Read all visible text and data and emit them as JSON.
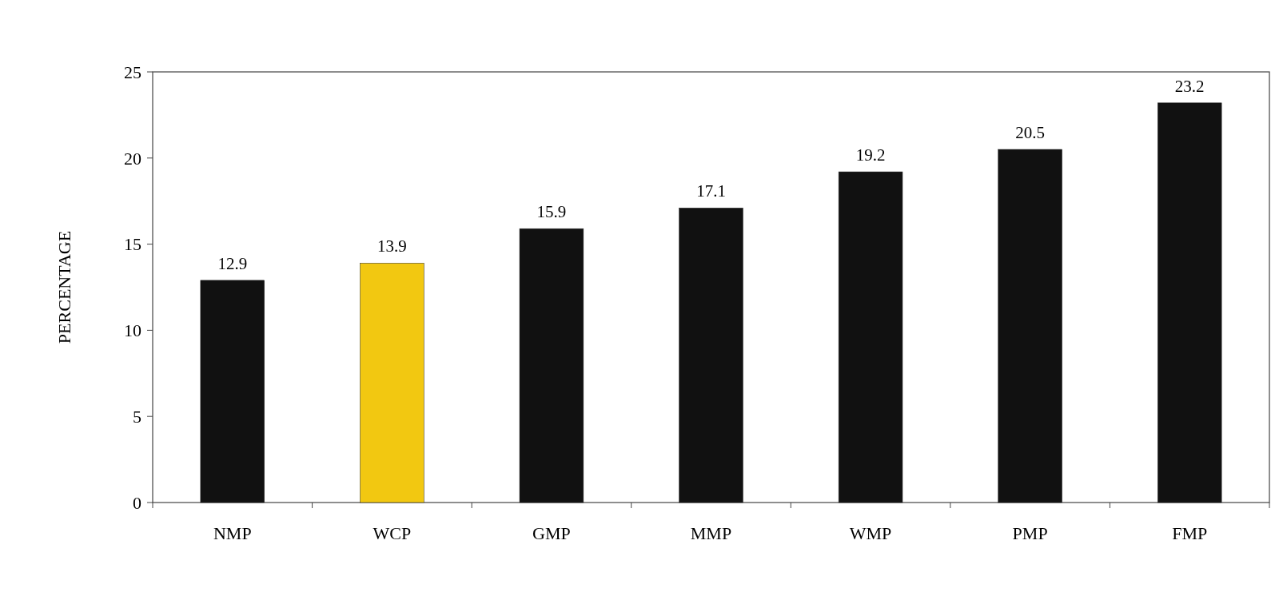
{
  "chart_data": {
    "type": "bar",
    "ylabel": "PERCENTAGE",
    "categories": [
      "NMP",
      "WCP",
      "GMP",
      "MMP",
      "WMP",
      "PMP",
      "FMP"
    ],
    "values": [
      12.9,
      13.9,
      15.9,
      17.1,
      19.2,
      20.5,
      23.2
    ],
    "colors": [
      "#111111",
      "#f2c811",
      "#111111",
      "#111111",
      "#111111",
      "#111111",
      "#111111"
    ],
    "ylim": [
      0,
      25
    ],
    "yticks": [
      0,
      5,
      10,
      15,
      20,
      25
    ],
    "data_labels": true
  }
}
